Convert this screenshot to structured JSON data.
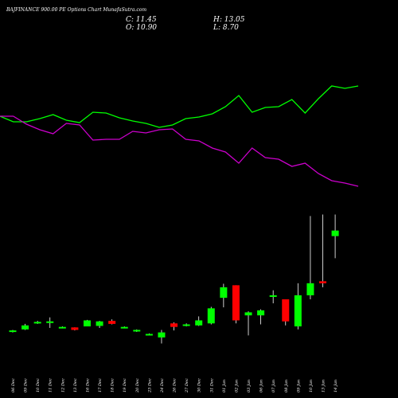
{
  "header": {
    "title": "BAJFINANCE 900.00  PE Options  Chart MunafaSutra.com",
    "c_text": "C: 11.45",
    "o_text": "O: 10.90",
    "h_text": "H: 13.05",
    "l_text": "L: 8.70"
  },
  "colors": {
    "background": "#000000",
    "up": "#00ff00",
    "down": "#ff0000",
    "line_green": "#00ff00",
    "line_magenta": "#cc00cc",
    "wick": "#ffffff",
    "text": "#ffffff"
  },
  "chart_data": {
    "type": "candlestick",
    "grid": false,
    "ylim": [
      0,
      14.2
    ],
    "categories": [
      "06 Dec",
      "09 Dec",
      "10 Dec",
      "11 Dec",
      "12 Dec",
      "13 Dec",
      "16 Dec",
      "17 Dec",
      "18 Dec",
      "19 Dec",
      "20 Dec",
      "23 Dec",
      "24 Dec",
      "26 Dec",
      "27 Dec",
      "30 Dec",
      "31 Dec",
      "01 Jan",
      "02 Jan",
      "03 Jan",
      "06 Jan",
      "07 Jan",
      "08 Jan",
      "09 Jan",
      "10 Jan",
      "13 Jan",
      "14 Jan"
    ],
    "candles": [
      {
        "o": 1.45,
        "h": 1.55,
        "l": 1.3,
        "c": 1.5
      },
      {
        "o": 1.6,
        "h": 2.15,
        "l": 1.55,
        "c": 2.0
      },
      {
        "o": 2.25,
        "h": 2.45,
        "l": 2.15,
        "c": 2.35
      },
      {
        "o": 2.3,
        "h": 2.8,
        "l": 1.75,
        "c": 2.4
      },
      {
        "o": 1.8,
        "h": 1.9,
        "l": 1.7,
        "c": 1.85
      },
      {
        "o": 1.8,
        "h": 1.8,
        "l": 1.5,
        "c": 1.55
      },
      {
        "o": 1.9,
        "h": 2.55,
        "l": 1.9,
        "c": 2.5
      },
      {
        "o": 1.95,
        "h": 2.45,
        "l": 1.75,
        "c": 2.4
      },
      {
        "o": 2.45,
        "h": 2.6,
        "l": 2.1,
        "c": 2.15
      },
      {
        "o": 1.8,
        "h": 1.9,
        "l": 1.7,
        "c": 1.85
      },
      {
        "o": 1.4,
        "h": 1.6,
        "l": 1.35,
        "c": 1.55
      },
      {
        "o": 1.05,
        "h": 1.2,
        "l": 1.0,
        "c": 1.15
      },
      {
        "o": 0.8,
        "h": 1.55,
        "l": 0.2,
        "c": 1.3
      },
      {
        "o": 2.2,
        "h": 2.3,
        "l": 1.5,
        "c": 1.85
      },
      {
        "o": 2.0,
        "h": 2.2,
        "l": 1.9,
        "c": 2.1
      },
      {
        "o": 2.0,
        "h": 2.9,
        "l": 1.95,
        "c": 2.5
      },
      {
        "o": 2.2,
        "h": 3.85,
        "l": 2.1,
        "c": 3.7
      },
      {
        "o": 4.75,
        "h": 6.15,
        "l": 3.8,
        "c": 5.8
      },
      {
        "o": 6.0,
        "h": 6.0,
        "l": 2.2,
        "c": 2.5
      },
      {
        "o": 3.0,
        "h": 3.4,
        "l": 1.0,
        "c": 3.3
      },
      {
        "o": 3.0,
        "h": 3.6,
        "l": 2.1,
        "c": 3.5
      },
      {
        "o": 4.9,
        "h": 5.5,
        "l": 4.2,
        "c": 5.0
      },
      {
        "o": 4.6,
        "h": 4.6,
        "l": 2.0,
        "c": 2.4
      },
      {
        "o": 1.9,
        "h": 6.2,
        "l": 1.6,
        "c": 5.0
      },
      {
        "o": 5.0,
        "h": 12.9,
        "l": 4.6,
        "c": 6.2
      },
      {
        "o": 6.4,
        "h": 13.05,
        "l": 5.8,
        "c": 6.2
      },
      {
        "o": 10.9,
        "h": 13.05,
        "l": 8.7,
        "c": 11.45
      }
    ],
    "line_upper": [
      146,
      153,
      153,
      149,
      144,
      151,
      154,
      141,
      142,
      148,
      152,
      155,
      160,
      157,
      149,
      147,
      143,
      134,
      120,
      141,
      135,
      134,
      125,
      142,
      124,
      108,
      111,
      108
    ],
    "line_lower": [
      146,
      146,
      156,
      163,
      168,
      155,
      157,
      176,
      175,
      175,
      165,
      167,
      163,
      162,
      175,
      177,
      186,
      191,
      205,
      186,
      198,
      200,
      209,
      205,
      218,
      227,
      230,
      234
    ]
  }
}
